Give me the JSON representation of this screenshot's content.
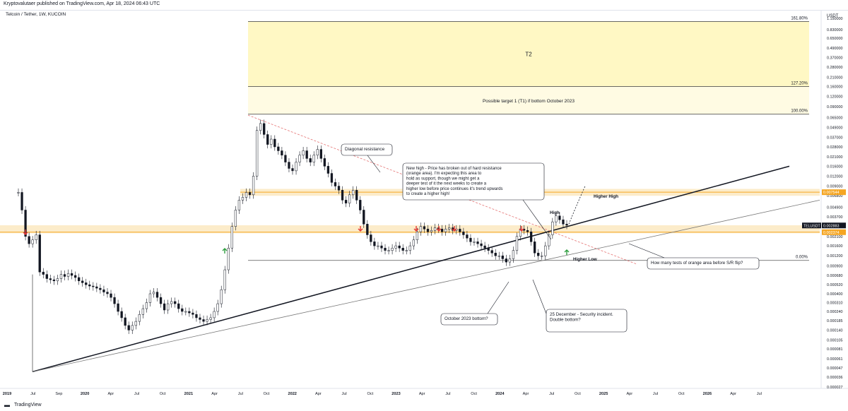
{
  "header": {
    "published": "Kryptovalutaer published on TradingView.com, Apr 18, 2024 06:43 UTC"
  },
  "symbol_title": "Telcoin / Tether, 1W, KUCOIN",
  "footer": {
    "brand": "TradingView"
  },
  "colors": {
    "zone": "#fbe9c1",
    "zone_line": "#f5a623",
    "t1": "#fffbe3",
    "t2": "#fff8c4",
    "up": "#26a69a",
    "candle": "#131722",
    "red_arrow": "#e53935",
    "green_arrow": "#2e9e3f",
    "diag": "#e57373"
  },
  "chart_data": {
    "type": "candlestick",
    "scale": "log",
    "y_unit_label": "USDT",
    "y_ticks": [
      "1.150000",
      "0.830000",
      "0.650000",
      "0.490000",
      "0.370000",
      "0.280000",
      "0.210000",
      "0.160000",
      "0.120000",
      "0.090000",
      "0.065000",
      "0.049000",
      "0.037000",
      "0.028000",
      "0.021000",
      "0.016000",
      "0.012000",
      "0.009000",
      "0.006800",
      "0.004900",
      "0.003700",
      "0.002800",
      "0.002100",
      "0.001600",
      "0.001200",
      "0.000900",
      "0.000680",
      "0.000520",
      "0.000400",
      "0.000310",
      "0.000240",
      "0.000185",
      "0.000140",
      "0.000105",
      "0.000081",
      "0.000061",
      "0.000047",
      "0.000036",
      "0.000027"
    ],
    "x_ticks": [
      "2019",
      "Jul",
      "Sep",
      "2020",
      "Apr",
      "Jul",
      "Oct",
      "2021",
      "Apr",
      "Jul",
      "Oct",
      "2022",
      "Apr",
      "Jul",
      "Oct",
      "2023",
      "Apr",
      "Jul",
      "Oct",
      "2024",
      "Apr",
      "Jul",
      "Oct",
      "2025",
      "Apr",
      "Jul",
      "Oct",
      "2026",
      "Apr",
      "Jul"
    ],
    "price_labels": [
      {
        "text": "0.007544",
        "value": 0.007544,
        "color": "#f5a623"
      },
      {
        "text": "0.002883",
        "value": 0.002883,
        "color": "#131722"
      },
      {
        "text": "0.002374",
        "value": 0.002374,
        "color": "#f5a623"
      }
    ],
    "ticker_label": "TELUSDT",
    "fib_levels": [
      {
        "label": "161.80%",
        "value": 1.05
      },
      {
        "label": "127.20%",
        "value": 0.16
      },
      {
        "label": "100.00%",
        "value": 0.072
      },
      {
        "label": "0.00%",
        "value": 0.00105
      }
    ],
    "zone_labels": {
      "t2": "T2",
      "t1": "Possible target 1 (T1) if bottom October 2023"
    },
    "annotations": {
      "diagonal_resistance": "Diagonal resistance",
      "new_high": [
        "New high - Price has broken out of hard resistance",
        "(orange area). I'm expecting this area to",
        "hold as support, though we might get a",
        "deeper test of it  the next weeks to create a",
        "higher low before price continues it's trend upwards",
        "to create a higher high!"
      ],
      "high": "High",
      "higher_high": "Higher High",
      "higher_low": "Higher Low",
      "tests_question": "How many tests of orange area before S/R flip?",
      "oct_bottom": "October 2023 bottom?",
      "security": [
        "25 December - Security incident.",
        "Double bottom?"
      ]
    },
    "series": [
      {
        "name": "TELUSDT",
        "closes": [
          0.0075,
          0.0045,
          0.0021,
          0.0017,
          0.0019,
          0.0022,
          0.00075,
          0.0007,
          0.00062,
          0.0006,
          0.00058,
          0.00062,
          0.0007,
          0.00066,
          0.00072,
          0.00068,
          0.00064,
          0.00058,
          0.00055,
          0.00052,
          0.0005,
          0.00049,
          0.00047,
          0.00045,
          0.00042,
          0.0004,
          0.00036,
          0.0003,
          0.00024,
          0.0002,
          0.00016,
          0.00014,
          0.00016,
          0.00018,
          0.00022,
          0.00026,
          0.00031,
          0.0004,
          0.00042,
          0.00036,
          0.0003,
          0.00025,
          0.0003,
          0.00032,
          0.0003,
          0.00026,
          0.00024,
          0.00024,
          0.00023,
          0.00022,
          0.0002,
          0.00019,
          0.00018,
          0.00019,
          0.0002,
          0.00024,
          0.0003,
          0.00045,
          0.0008,
          0.0015,
          0.0028,
          0.0045,
          0.006,
          0.0065,
          0.0075,
          0.007,
          0.012,
          0.045,
          0.055,
          0.04,
          0.03,
          0.035,
          0.028,
          0.025,
          0.022,
          0.018,
          0.015,
          0.014,
          0.018,
          0.022,
          0.025,
          0.02,
          0.018,
          0.022,
          0.026,
          0.02,
          0.016,
          0.013,
          0.01,
          0.009,
          0.008,
          0.006,
          0.0055,
          0.007,
          0.008,
          0.006,
          0.0045,
          0.003,
          0.0022,
          0.0018,
          0.0016,
          0.0016,
          0.0015,
          0.0014,
          0.0014,
          0.0015,
          0.0016,
          0.0015,
          0.0014,
          0.0014,
          0.0016,
          0.0019,
          0.0024,
          0.0028,
          0.0026,
          0.0024,
          0.0025,
          0.0027,
          0.0026,
          0.0024,
          0.0026,
          0.0027,
          0.0025,
          0.0026,
          0.0024,
          0.0022,
          0.002,
          0.0018,
          0.0018,
          0.0017,
          0.0016,
          0.0015,
          0.0014,
          0.0013,
          0.0012,
          0.0012,
          0.0011,
          0.001,
          0.0011,
          0.0014,
          0.0021,
          0.0026,
          0.0025,
          0.0024,
          0.0018,
          0.0013,
          0.0012,
          0.0012,
          0.0016,
          0.0022,
          0.0032,
          0.0038,
          0.0034,
          0.003,
          0.0029
        ]
      }
    ]
  }
}
